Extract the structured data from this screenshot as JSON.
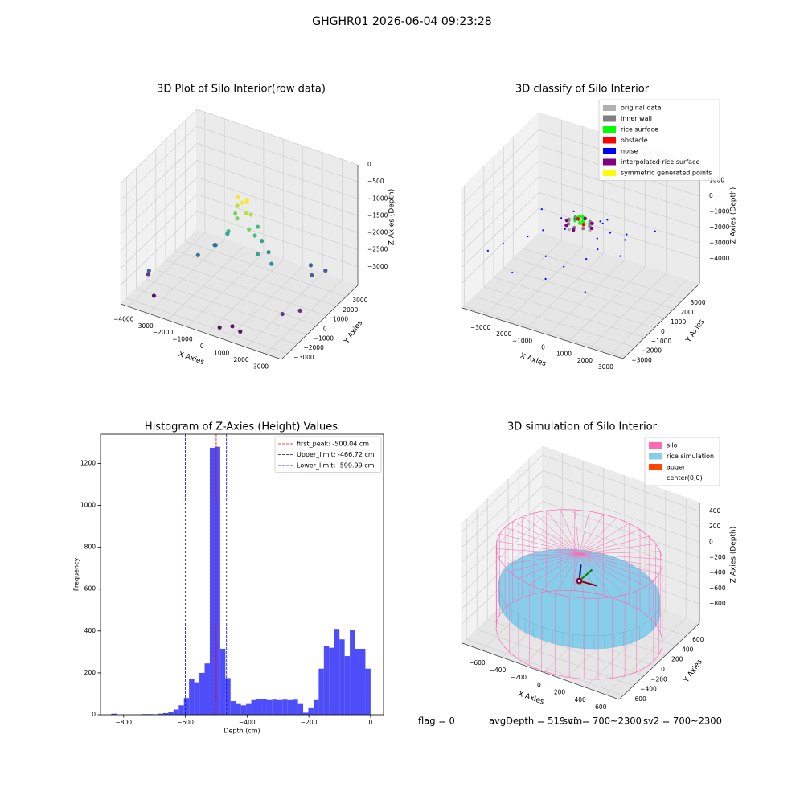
{
  "title": "GHGHR01 2026-06-04 09:23:28",
  "chart_data": [
    {
      "type": "scatter3d",
      "title": "3D Plot of Silo Interior(row data)",
      "xlabel": "X Axies",
      "ylabel": "Y Axies",
      "zlabel": "Z Axies (Depth)",
      "xlim": [
        -4400,
        3800
      ],
      "ylim": [
        -3600,
        4200
      ],
      "zlim": [
        -3550,
        0
      ],
      "xticks": [
        {
          "value": -4000,
          "label": "−4000"
        },
        {
          "value": -3000,
          "label": "−3000"
        },
        {
          "value": -2000,
          "label": "−2000"
        },
        {
          "value": -1000,
          "label": "−1000"
        },
        0,
        1000,
        2000,
        3000
      ],
      "yticks": [
        {
          "value": -3000,
          "label": "−3000"
        },
        {
          "value": -2000,
          "label": "−2000"
        },
        {
          "value": -1000,
          "label": "−1000"
        },
        0,
        1000,
        2000,
        3000
      ],
      "zticks": [
        {
          "value": -3000,
          "label": "−3000"
        },
        {
          "value": -2500,
          "label": "−2500"
        },
        {
          "value": -2000,
          "label": "−2000"
        },
        {
          "value": -1500,
          "label": "−1500"
        },
        {
          "value": -1000,
          "label": "−1000"
        },
        {
          "value": -500,
          "label": "−500"
        },
        0
      ],
      "colormap": "viridis",
      "x": [
        0,
        200,
        -200,
        300,
        -300,
        100,
        400,
        -100,
        500,
        -500,
        600,
        700,
        -600,
        900,
        -800,
        1000,
        1200,
        -1200,
        1500,
        -1500,
        2500,
        2800,
        3000,
        2800,
        -3500,
        -3800,
        -3000,
        1000,
        1500,
        500,
        3200,
        -2000
      ],
      "y": [
        0,
        100,
        -100,
        -200,
        200,
        300,
        100,
        -300,
        -300,
        300,
        400,
        -100,
        -200,
        200,
        100,
        -400,
        300,
        -300,
        0,
        200,
        2000,
        1500,
        2500,
        -1500,
        -2500,
        -2000,
        -3000,
        -3000,
        -3200,
        -3300,
        -500,
        -500
      ],
      "z": [
        -700,
        -600,
        -800,
        -900,
        -650,
        -750,
        -1000,
        -1100,
        -1300,
        -1200,
        -1400,
        -1500,
        -1600,
        -1700,
        -1800,
        -1900,
        -2000,
        -2100,
        -2200,
        -2300,
        -2600,
        -2700,
        -2800,
        -3000,
        -2700,
        -3000,
        -3200,
        -3300,
        -3300,
        -3350,
        -3100,
        -2500
      ]
    },
    {
      "type": "scatter3d",
      "title": "3D classify of Silo Interior",
      "xlabel": "X Axies",
      "ylabel": "Y Axies",
      "zlabel": "Z Axies (Depth)",
      "xlim": [
        -4100,
        3600
      ],
      "ylim": [
        -3200,
        4600
      ],
      "zlim": [
        -5600,
        2100
      ],
      "xticks": [
        {
          "value": -3000,
          "label": "−3000"
        },
        {
          "value": -2000,
          "label": "−2000"
        },
        {
          "value": -1000,
          "label": "−1000"
        },
        0,
        1000,
        2000,
        3000
      ],
      "yticks": [
        {
          "value": -3000,
          "label": "−3000"
        },
        {
          "value": -2000,
          "label": "−2000"
        },
        {
          "value": -1000,
          "label": "−1000"
        },
        0,
        1000,
        2000,
        3000
      ],
      "zticks": [
        {
          "value": -4000,
          "label": "−4000"
        },
        {
          "value": -3000,
          "label": "−3000"
        },
        {
          "value": -2000,
          "label": "−2000"
        },
        {
          "value": -1000,
          "label": "−1000"
        },
        0,
        1000
      ],
      "legend": "upper right",
      "series": [
        {
          "name": "original data",
          "color": "#b0b0b0",
          "x": [
            300,
            -300,
            600,
            -600
          ],
          "y": [
            400,
            -400,
            -200,
            200
          ],
          "z": [
            -600,
            -700,
            -500,
            -650
          ]
        },
        {
          "name": "inner wall",
          "color": "#808080",
          "x": [
            500,
            0,
            -500,
            0,
            350,
            -350,
            350,
            -350
          ],
          "y": [
            0,
            500,
            0,
            -500,
            350,
            350,
            -350,
            -350
          ],
          "z": [
            -400,
            -400,
            -400,
            -400,
            -400,
            -400,
            -400,
            -400
          ]
        },
        {
          "name": "rice surface",
          "color": "#00ff00",
          "x": [
            0,
            150,
            -150,
            100,
            -100,
            200,
            -200,
            50
          ],
          "y": [
            0,
            100,
            -100,
            -150,
            150,
            -50,
            50,
            200
          ],
          "z": [
            -200,
            -150,
            -250,
            -300,
            -180,
            -220,
            -260,
            -100
          ]
        },
        {
          "name": "obstacle",
          "color": "#ff0000",
          "x": [
            250,
            -200
          ],
          "y": [
            -100,
            300
          ],
          "z": [
            -350,
            -420
          ]
        },
        {
          "name": "noise",
          "color": "#0000ff",
          "x": [
            -3200,
            -2800,
            -2500,
            -1800,
            -1500,
            -1200,
            -900,
            -600,
            -300,
            200,
            500,
            900,
            1200,
            1500,
            1800,
            2200,
            2600,
            -2000,
            -1000,
            1000,
            2000,
            -400,
            700,
            1300,
            300
          ],
          "y": [
            -2500,
            -1800,
            1500,
            -3000,
            -500,
            2000,
            -1500,
            800,
            -2800,
            -2000,
            1800,
            -1200,
            600,
            -2600,
            1000,
            -500,
            2200,
            -1000,
            300,
            -300,
            400,
            -600,
            900,
            -900,
            1500
          ],
          "z": [
            -2000,
            -1800,
            -1500,
            -2500,
            -1200,
            -1400,
            -2000,
            -900,
            -2400,
            -1900,
            -1100,
            -1600,
            -900,
            -2600,
            -1000,
            -1300,
            -1200,
            -1500,
            -700,
            -800,
            -900,
            -600,
            -700,
            -1000,
            -1100
          ]
        },
        {
          "name": "interpolated rice surface",
          "color": "#800080",
          "x": [
            600,
            -600,
            0,
            0,
            420,
            -420
          ],
          "y": [
            0,
            0,
            600,
            -600,
            420,
            -420
          ],
          "z": [
            -500,
            -500,
            -500,
            -500,
            -520,
            -480
          ]
        },
        {
          "name": "symmetric generated points",
          "color": "#ffff00",
          "x": [],
          "y": [],
          "z": []
        }
      ]
    },
    {
      "type": "histogram",
      "title": "Histogram of Z-Axies (Height) Values",
      "xlabel": "Depth (cm)",
      "ylabel": "Frequency",
      "color": "#4d4dfa",
      "bins": [
        -840,
        -823.2,
        -806.4,
        -789.6,
        -772.8,
        -756,
        -739.2,
        -722.4,
        -705.6,
        -688.8,
        -672,
        -655.2,
        -638.4,
        -621.6,
        -604.8,
        -588,
        -571.2,
        -554.4,
        -537.6,
        -520.8,
        -504,
        -487.2,
        -470.4,
        -453.6,
        -436.8,
        -420,
        -403.2,
        -386.4,
        -369.6,
        -352.8,
        -336,
        -319.2,
        -302.4,
        -285.6,
        -268.8,
        -252,
        -235.2,
        -218.4,
        -201.6,
        -184.8,
        -168,
        -151.2,
        -134.4,
        -117.6,
        -100.8,
        -84,
        -67.2,
        -50.4,
        -33.6,
        -16.8,
        0
      ],
      "values": [
        5,
        0,
        0,
        0,
        0,
        0,
        3,
        3,
        2,
        5,
        8,
        12,
        25,
        45,
        80,
        170,
        155,
        200,
        245,
        1275,
        1280,
        315,
        175,
        65,
        55,
        45,
        55,
        70,
        75,
        75,
        70,
        72,
        70,
        72,
        70,
        72,
        55,
        10,
        35,
        70,
        220,
        330,
        320,
        410,
        360,
        280,
        405,
        315,
        315,
        220
      ],
      "xlim": [
        -875,
        42
      ],
      "ylim": [
        0,
        1340
      ],
      "xticks": [
        {
          "value": -800,
          "label": "−800"
        },
        {
          "value": -600,
          "label": "−600"
        },
        {
          "value": -400,
          "label": "−400"
        },
        {
          "value": -200,
          "label": "−200"
        },
        0
      ],
      "yticks": [
        0,
        200,
        400,
        600,
        800,
        1000,
        1200
      ],
      "legend": "upper right",
      "vlines": [
        {
          "label": "first_peak: -500.04 cm",
          "value": -500.04,
          "color": "#ff0000"
        },
        {
          "label": "Upper_limit: -466.72 cm",
          "value": -466.72,
          "color": "#0000ff"
        },
        {
          "label": "Lower_limit: -599.99 cm",
          "value": -599.99,
          "color": "#0000ff"
        }
      ]
    },
    {
      "type": "sim3d",
      "title": "3D simulation of Silo Interior",
      "xlabel": "X Axies",
      "ylabel": "Y Axies",
      "zlabel": "Z Axies (Depth)",
      "xlim": [
        -790,
        730
      ],
      "ylim": [
        -680,
        860
      ],
      "zlim": [
        -1050,
        515
      ],
      "xticks": [
        {
          "value": -600,
          "label": "−600"
        },
        {
          "value": -400,
          "label": "−400"
        },
        {
          "value": -200,
          "label": "−200"
        },
        0,
        200,
        400,
        600
      ],
      "yticks": [
        {
          "value": -600,
          "label": "−600"
        },
        {
          "value": -400,
          "label": "−400"
        },
        {
          "value": -200,
          "label": "−200"
        },
        0,
        200,
        400,
        600
      ],
      "zticks": [
        {
          "value": -800,
          "label": "−800"
        },
        {
          "value": -600,
          "label": "−600"
        },
        {
          "value": -400,
          "label": "−400"
        },
        {
          "value": -200,
          "label": "−200"
        },
        0,
        200,
        400
      ],
      "legend": "upper right",
      "series": [
        {
          "name": "silo",
          "color": "#ff69b4",
          "radius": 720,
          "z": [
            -1000,
            50
          ]
        },
        {
          "name": "rice simulation",
          "color": "#87ceeb",
          "radius": 700,
          "z": [
            -620,
            -450
          ]
        },
        {
          "name": "auger",
          "color": "#ff4500",
          "x": [
            0
          ],
          "y": [
            0
          ],
          "z": [
            -300
          ]
        },
        {
          "name": "center(0,0)",
          "color": "#ffffff",
          "x": [
            0
          ],
          "y": [
            0
          ],
          "z": [
            -300
          ]
        }
      ]
    }
  ],
  "footer": [
    "flag = 0",
    "avgDepth = 519 cm",
    "sv1 = 700~2300",
    "sv2 = 700~2300"
  ]
}
